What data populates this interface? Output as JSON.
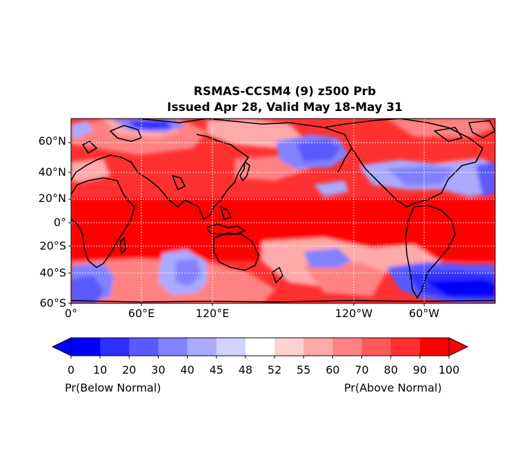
{
  "title_line1": "RSMAS-CCSM4 (9) z500 Prb",
  "title_line2": "Issued Apr 28, Valid May 18-May 31",
  "lat_labels": [
    "60°N",
    "40°N",
    "20°N",
    "0°",
    "20°S",
    "40°S",
    "60°S"
  ],
  "lat_values": [
    60,
    40,
    20,
    0,
    -20,
    -40,
    -60
  ],
  "lon_labels": [
    "0°",
    "60°E",
    "120°E",
    "120°W",
    "60°W"
  ],
  "lon_values": [
    0,
    60,
    120,
    240,
    300
  ],
  "colorbar": {
    "ticks": [
      "0",
      "10",
      "20",
      "30",
      "40",
      "45",
      "48",
      "52",
      "55",
      "60",
      "70",
      "80",
      "90",
      "100"
    ],
    "colors": [
      "#0000ff",
      "#3030ff",
      "#5a5aff",
      "#8282ff",
      "#aaaaff",
      "#d2d2ff",
      "#ffffff",
      "#ffd2d2",
      "#ffaaaa",
      "#ff8282",
      "#ff5a5a",
      "#ff3030",
      "#ff0000"
    ],
    "label_left": "Pr(Below Normal)",
    "label_right": "Pr(Above Normal)"
  },
  "map_colors": {
    "strong_red": "#ff0000",
    "red": "#ff3030",
    "mid_red": "#ff5a5a",
    "light_red": "#ff8282",
    "pale_red": "#ffaaaa",
    "pink": "#ffd2d2",
    "pale_blue": "#d2d2ff",
    "light_blue": "#aaaaff",
    "mid_blue": "#8282ff",
    "blue": "#5a5aff",
    "deep_blue": "#3030ff"
  }
}
